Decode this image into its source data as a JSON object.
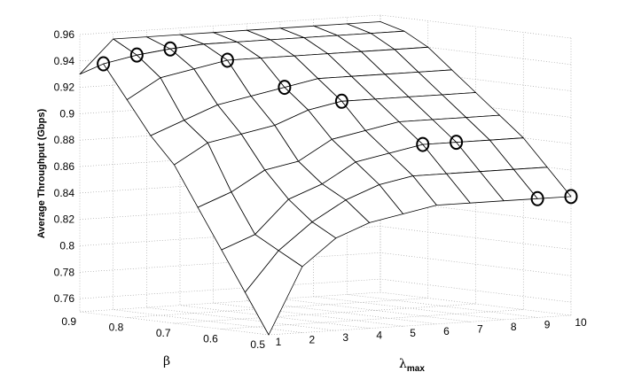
{
  "chart_data": {
    "type": "surface",
    "title": "",
    "zlabel": "Average Throughput (Gbps)",
    "beta_label": "β",
    "lambda_label": "λ",
    "lambda_label_sub": "max",
    "beta": [
      0.5,
      0.55,
      0.6,
      0.65,
      0.7,
      0.75,
      0.8,
      0.85,
      0.9
    ],
    "lambda_max": [
      1,
      2,
      3,
      4,
      5,
      6,
      7,
      8,
      9,
      10
    ],
    "zlim": [
      0.75,
      0.96
    ],
    "grid": true,
    "z": [
      [
        0.75,
        0.8,
        0.82,
        0.83,
        0.835,
        0.84,
        0.84,
        0.84,
        0.84,
        0.84
      ],
      [
        0.78,
        0.81,
        0.83,
        0.845,
        0.855,
        0.86,
        0.86,
        0.86,
        0.86,
        0.86
      ],
      [
        0.81,
        0.82,
        0.845,
        0.855,
        0.87,
        0.875,
        0.88,
        0.88,
        0.88,
        0.88
      ],
      [
        0.84,
        0.85,
        0.865,
        0.87,
        0.885,
        0.89,
        0.895,
        0.895,
        0.895,
        0.895
      ],
      [
        0.87,
        0.885,
        0.89,
        0.895,
        0.905,
        0.91,
        0.91,
        0.91,
        0.91,
        0.91
      ],
      [
        0.89,
        0.9,
        0.91,
        0.915,
        0.92,
        0.925,
        0.925,
        0.925,
        0.925,
        0.925
      ],
      [
        0.915,
        0.93,
        0.935,
        0.94,
        0.94,
        0.94,
        0.94,
        0.94,
        0.94,
        0.94
      ],
      [
        0.94,
        0.945,
        0.948,
        0.95,
        0.95,
        0.95,
        0.95,
        0.95,
        0.95,
        0.95
      ],
      [
        0.93,
        0.955,
        0.955,
        0.955,
        0.955,
        0.955,
        0.955,
        0.955,
        0.955,
        0.955
      ]
    ],
    "optimal_points": [
      {
        "lambda_max": 1,
        "beta": 0.85
      },
      {
        "lambda_max": 2,
        "beta": 0.85
      },
      {
        "lambda_max": 3,
        "beta": 0.85
      },
      {
        "lambda_max": 4,
        "beta": 0.8
      },
      {
        "lambda_max": 5,
        "beta": 0.75
      },
      {
        "lambda_max": 6,
        "beta": 0.7
      },
      {
        "lambda_max": 7,
        "beta": 0.6
      },
      {
        "lambda_max": 8,
        "beta": 0.6
      },
      {
        "lambda_max": 9,
        "beta": 0.5
      },
      {
        "lambda_max": 10,
        "beta": 0.5
      }
    ],
    "z_ticks": [
      "0.76",
      "0.78",
      "0.8",
      "0.82",
      "0.84",
      "0.86",
      "0.88",
      "0.9",
      "0.92",
      "0.94",
      "0.96"
    ],
    "beta_ticks": [
      "0.9",
      "0.8",
      "0.7",
      "0.6",
      "0.5"
    ],
    "lambda_ticks": [
      "1",
      "2",
      "3",
      "4",
      "5",
      "6",
      "7",
      "8",
      "9",
      "10"
    ],
    "marker_style": "open-circle"
  }
}
